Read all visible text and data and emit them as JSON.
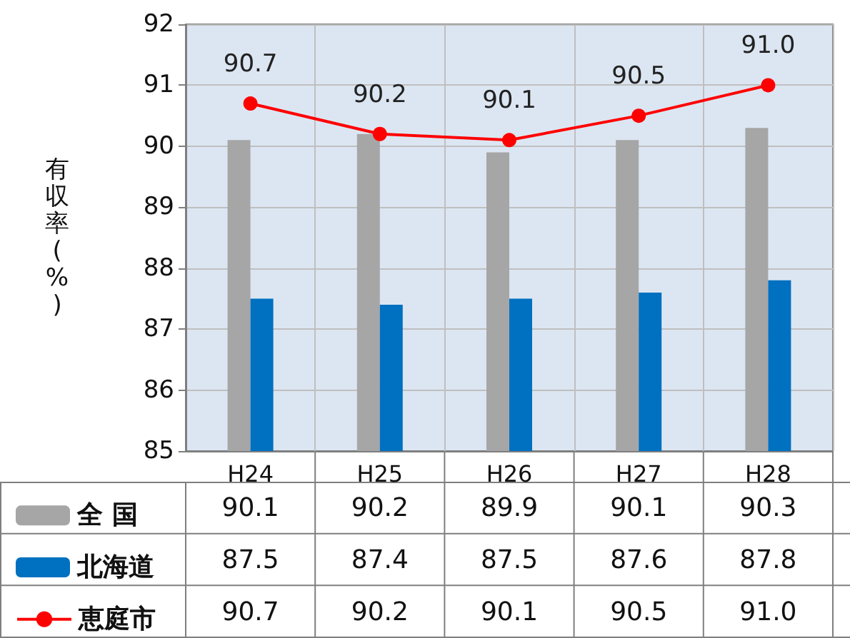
{
  "chart_data": {
    "type": "bar",
    "ylabel": "有収率(%)",
    "categories": [
      "H24",
      "H25",
      "H26",
      "H27",
      "H28"
    ],
    "series": [
      {
        "name": "全 国",
        "color": "#a6a6a6",
        "values": [
          90.1,
          90.2,
          89.9,
          90.1,
          90.3
        ],
        "value_labels": [
          "90.1",
          "90.2",
          "89.9",
          "90.1",
          "90.3"
        ]
      },
      {
        "name": "北海道",
        "color": "#0070c0",
        "values": [
          87.5,
          87.4,
          87.5,
          87.6,
          87.8
        ],
        "value_labels": [
          "87.5",
          "87.4",
          "87.5",
          "87.6",
          "87.8"
        ]
      },
      {
        "name": "恵庭市",
        "type": "line",
        "color": "#ff0000",
        "marker": "circle",
        "values": [
          90.7,
          90.2,
          90.1,
          90.5,
          91.0
        ],
        "value_labels": [
          "90.7",
          "90.2",
          "90.1",
          "90.5",
          "91.0"
        ]
      }
    ],
    "ylim": [
      85,
      92
    ],
    "yticks": [
      85,
      86,
      87,
      88,
      89,
      90,
      91,
      92
    ],
    "grid": true,
    "legend": "bottom"
  }
}
